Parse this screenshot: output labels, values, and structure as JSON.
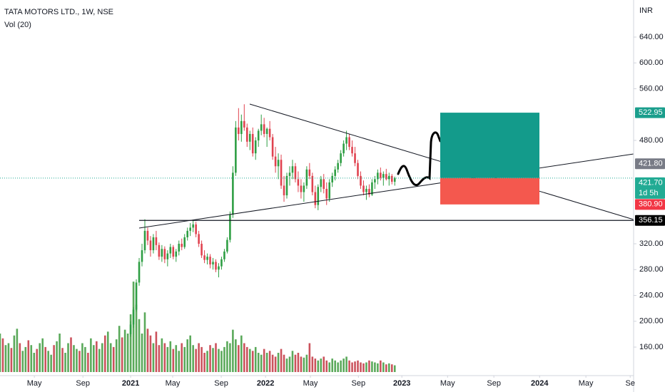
{
  "chart_data": {
    "type": "candlestick",
    "title": "TATA MOTORS LTD., 1W, NSE",
    "volume_label": "Vol (20)",
    "currency": "INR",
    "up_color": "#2e9e43",
    "down_color": "#e0424f",
    "volume_up_color": "#3d9a3d",
    "volume_down_color": "#c2343f",
    "candles": [
      [
        180,
        200,
        176,
        195
      ],
      [
        195,
        222,
        190,
        218
      ],
      [
        218,
        265,
        215,
        260
      ],
      [
        260,
        298,
        255,
        292
      ],
      [
        292,
        320,
        285,
        310
      ],
      [
        310,
        358,
        305,
        340
      ],
      [
        340,
        345,
        318,
        325
      ],
      [
        325,
        332,
        300,
        310
      ],
      [
        310,
        335,
        305,
        330
      ],
      [
        330,
        340,
        310,
        318
      ],
      [
        318,
        322,
        295,
        300
      ],
      [
        300,
        318,
        292,
        312
      ],
      [
        312,
        316,
        290,
        296
      ],
      [
        296,
        310,
        285,
        305
      ],
      [
        305,
        320,
        298,
        315
      ],
      [
        315,
        318,
        296,
        300
      ],
      [
        300,
        312,
        292,
        308
      ],
      [
        308,
        325,
        302,
        320
      ],
      [
        320,
        328,
        310,
        315
      ],
      [
        315,
        335,
        312,
        330
      ],
      [
        330,
        345,
        325,
        340
      ],
      [
        340,
        352,
        332,
        345
      ],
      [
        345,
        356,
        338,
        350
      ],
      [
        350,
        354,
        330,
        335
      ],
      [
        335,
        340,
        315,
        320
      ],
      [
        320,
        325,
        298,
        302
      ],
      [
        302,
        310,
        290,
        295
      ],
      [
        295,
        305,
        288,
        300
      ],
      [
        300,
        304,
        282,
        288
      ],
      [
        288,
        298,
        280,
        292
      ],
      [
        292,
        296,
        276,
        280
      ],
      [
        280,
        290,
        268,
        285
      ],
      [
        285,
        300,
        280,
        296
      ],
      [
        296,
        312,
        292,
        308
      ],
      [
        308,
        330,
        305,
        326
      ],
      [
        326,
        370,
        322,
        365
      ],
      [
        365,
        440,
        360,
        430
      ],
      [
        430,
        510,
        425,
        500
      ],
      [
        500,
        530,
        480,
        490
      ],
      [
        490,
        520,
        478,
        510
      ],
      [
        510,
        536,
        495,
        500
      ],
      [
        500,
        506,
        470,
        478
      ],
      [
        478,
        495,
        465,
        490
      ],
      [
        490,
        500,
        455,
        460
      ],
      [
        460,
        485,
        450,
        480
      ],
      [
        480,
        498,
        470,
        495
      ],
      [
        495,
        520,
        488,
        505
      ],
      [
        505,
        515,
        485,
        490
      ],
      [
        490,
        500,
        470,
        498
      ],
      [
        498,
        510,
        480,
        485
      ],
      [
        485,
        490,
        450,
        455
      ],
      [
        455,
        470,
        430,
        440
      ],
      [
        440,
        460,
        420,
        450
      ],
      [
        450,
        458,
        405,
        410
      ],
      [
        410,
        425,
        385,
        395
      ],
      [
        395,
        430,
        390,
        425
      ],
      [
        425,
        440,
        410,
        430
      ],
      [
        430,
        450,
        420,
        440
      ],
      [
        440,
        445,
        415,
        420
      ],
      [
        420,
        432,
        400,
        410
      ],
      [
        410,
        420,
        390,
        400
      ],
      [
        400,
        415,
        385,
        410
      ],
      [
        410,
        440,
        405,
        435
      ],
      [
        435,
        445,
        420,
        425
      ],
      [
        425,
        430,
        395,
        400
      ],
      [
        400,
        410,
        375,
        380
      ],
      [
        380,
        412,
        372,
        408
      ],
      [
        408,
        425,
        400,
        420
      ],
      [
        420,
        428,
        398,
        405
      ],
      [
        405,
        415,
        380,
        390
      ],
      [
        390,
        420,
        385,
        415
      ],
      [
        415,
        430,
        408,
        425
      ],
      [
        425,
        440,
        418,
        435
      ],
      [
        435,
        450,
        430,
        445
      ],
      [
        445,
        465,
        440,
        460
      ],
      [
        460,
        480,
        455,
        475
      ],
      [
        475,
        495,
        465,
        485
      ],
      [
        485,
        490,
        465,
        470
      ],
      [
        470,
        480,
        455,
        460
      ],
      [
        460,
        470,
        440,
        445
      ],
      [
        445,
        450,
        420,
        425
      ],
      [
        425,
        432,
        405,
        410
      ],
      [
        410,
        418,
        395,
        400
      ],
      [
        400,
        410,
        388,
        405
      ],
      [
        405,
        412,
        392,
        396
      ],
      [
        396,
        420,
        394,
        415
      ],
      [
        415,
        425,
        405,
        420
      ],
      [
        420,
        435,
        412,
        430
      ],
      [
        430,
        438,
        418,
        422
      ],
      [
        422,
        432,
        410,
        428
      ],
      [
        428,
        436,
        418,
        420
      ],
      [
        420,
        430,
        410,
        425
      ],
      [
        425,
        428,
        412,
        416
      ],
      [
        416,
        424,
        410,
        421.7
      ]
    ],
    "volume_start_x": -46,
    "volume": [
      40,
      35,
      28,
      30,
      25,
      38,
      45,
      30,
      22,
      26,
      33,
      28,
      20,
      24,
      30,
      35,
      26,
      22,
      18,
      28,
      32,
      40,
      25,
      20,
      30,
      36,
      28,
      24,
      22,
      30,
      26,
      20,
      35,
      28,
      32,
      24,
      30,
      38,
      42,
      30,
      26,
      34,
      48,
      36,
      44,
      40,
      60,
      94,
      70,
      55,
      40,
      62,
      45,
      38,
      30,
      42,
      28,
      35,
      30,
      26,
      32,
      24,
      28,
      22,
      30,
      26,
      34,
      38,
      28,
      24,
      30,
      26,
      20,
      22,
      28,
      25,
      30,
      24,
      22,
      26,
      32,
      30,
      44,
      34,
      28,
      38,
      30,
      26,
      24,
      22,
      26,
      20,
      18,
      24,
      20,
      22,
      18,
      16,
      20,
      24,
      18,
      14,
      16,
      22,
      18,
      20,
      16,
      15,
      18,
      30,
      16,
      14,
      12,
      14,
      16,
      12,
      10,
      14,
      12,
      10,
      12,
      14,
      16,
      12,
      10,
      11,
      12,
      10,
      9,
      10,
      12,
      11,
      10,
      9,
      12,
      10,
      8,
      9,
      8,
      7
    ],
    "volume_ylim": [
      0,
      100
    ],
    "xlim": [
      -46,
      177.1
    ],
    "xticks": [
      {
        "value": -33.9,
        "label": "May"
      },
      {
        "value": -16.8,
        "label": "Sep"
      },
      {
        "value": 0,
        "label": "2021"
      },
      {
        "value": 14.8,
        "label": "May"
      },
      {
        "value": 31.9,
        "label": "Sep"
      },
      {
        "value": 47.5,
        "label": "2022"
      },
      {
        "value": 63.3,
        "label": "May"
      },
      {
        "value": 80.2,
        "label": "Sep"
      },
      {
        "value": 95.5,
        "label": "2023"
      },
      {
        "value": 111.6,
        "label": "May"
      },
      {
        "value": 127.9,
        "label": "Sep"
      },
      {
        "value": 144,
        "label": "2024"
      },
      {
        "value": 160.3,
        "label": "May"
      },
      {
        "value": 175.9,
        "label": "Se"
      }
    ],
    "ylim": [
      121.4,
      697.4
    ],
    "yticks": [
      {
        "value": 640,
        "label": "640.00"
      },
      {
        "value": 600,
        "label": "600.00"
      },
      {
        "value": 560,
        "label": "560.00"
      },
      {
        "value": 480,
        "label": "480.00"
      },
      {
        "value": 320,
        "label": "320.00"
      },
      {
        "value": 280,
        "label": "280.00"
      },
      {
        "value": 240,
        "label": "240.00"
      },
      {
        "value": 200,
        "label": "200.00"
      },
      {
        "value": 160,
        "label": "160.00"
      }
    ],
    "position": {
      "target": 522.95,
      "entry": 421.8,
      "stop": 380.9
    },
    "support": 356.15,
    "last_price": 421.7,
    "price_labels": [
      {
        "value": 522.95,
        "label": "522.95",
        "color": "#1a9e8c"
      },
      {
        "value": 421.8,
        "label": "421.80",
        "color": "#787b86"
      },
      {
        "value": 421.7,
        "label": "421.70",
        "sub": "1d 5h",
        "color": "#22ab94"
      },
      {
        "value": 380.9,
        "label": "380.90",
        "color": "#f23645"
      },
      {
        "value": 356.15,
        "label": "356.15",
        "color": "#000000"
      }
    ]
  }
}
